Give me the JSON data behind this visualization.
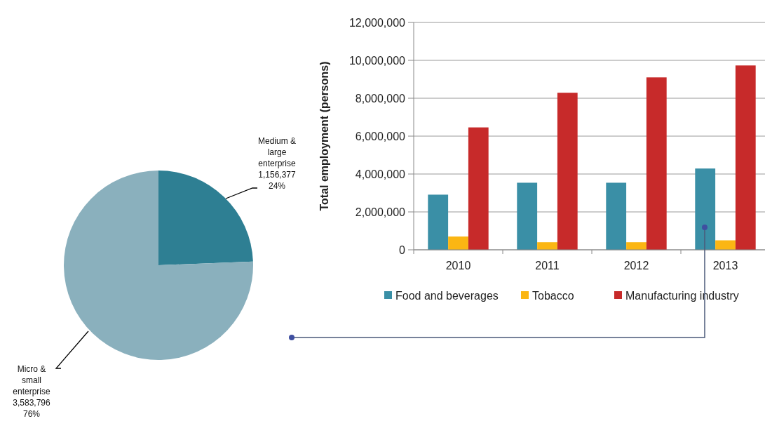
{
  "chart_data": [
    {
      "type": "pie",
      "categories": [
        "Medium & large enterprise",
        "Micro & small enterprise"
      ],
      "values": [
        1156377,
        3583796
      ],
      "colors": [
        "#2e7f93",
        "#8ab0bd"
      ],
      "value_labels": [
        "1,156,377\n24%",
        "3,583,796\n76%"
      ]
    },
    {
      "type": "bar",
      "ylabel": "Total employment (persons)",
      "categories": [
        "2010",
        "2011",
        "2012",
        "2013"
      ],
      "ylim": [
        0,
        12000000
      ],
      "yticks": [
        {
          "value": 0,
          "label": "0"
        },
        {
          "value": 2000000,
          "label": "2,000,000"
        },
        {
          "value": 4000000,
          "label": "4,000,000"
        },
        {
          "value": 6000000,
          "label": "6,000,000"
        },
        {
          "value": 8000000,
          "label": "8,000,000"
        },
        {
          "value": 10000000,
          "label": "10,000,000"
        },
        {
          "value": 12000000,
          "label": "12,000,000"
        }
      ],
      "grid": "y",
      "legend": "bottom",
      "series": [
        {
          "name": "Food and beverages",
          "color": "#3a8fa6",
          "values": [
            2910000,
            3540000,
            3540000,
            4290000
          ]
        },
        {
          "name": "Tobacco",
          "color": "#fbb613",
          "values": [
            700000,
            400000,
            400000,
            500000
          ]
        },
        {
          "name": "Manufacturing industry",
          "color": "#c72a2a",
          "values": [
            6460000,
            8290000,
            9100000,
            9730000
          ]
        }
      ]
    }
  ]
}
